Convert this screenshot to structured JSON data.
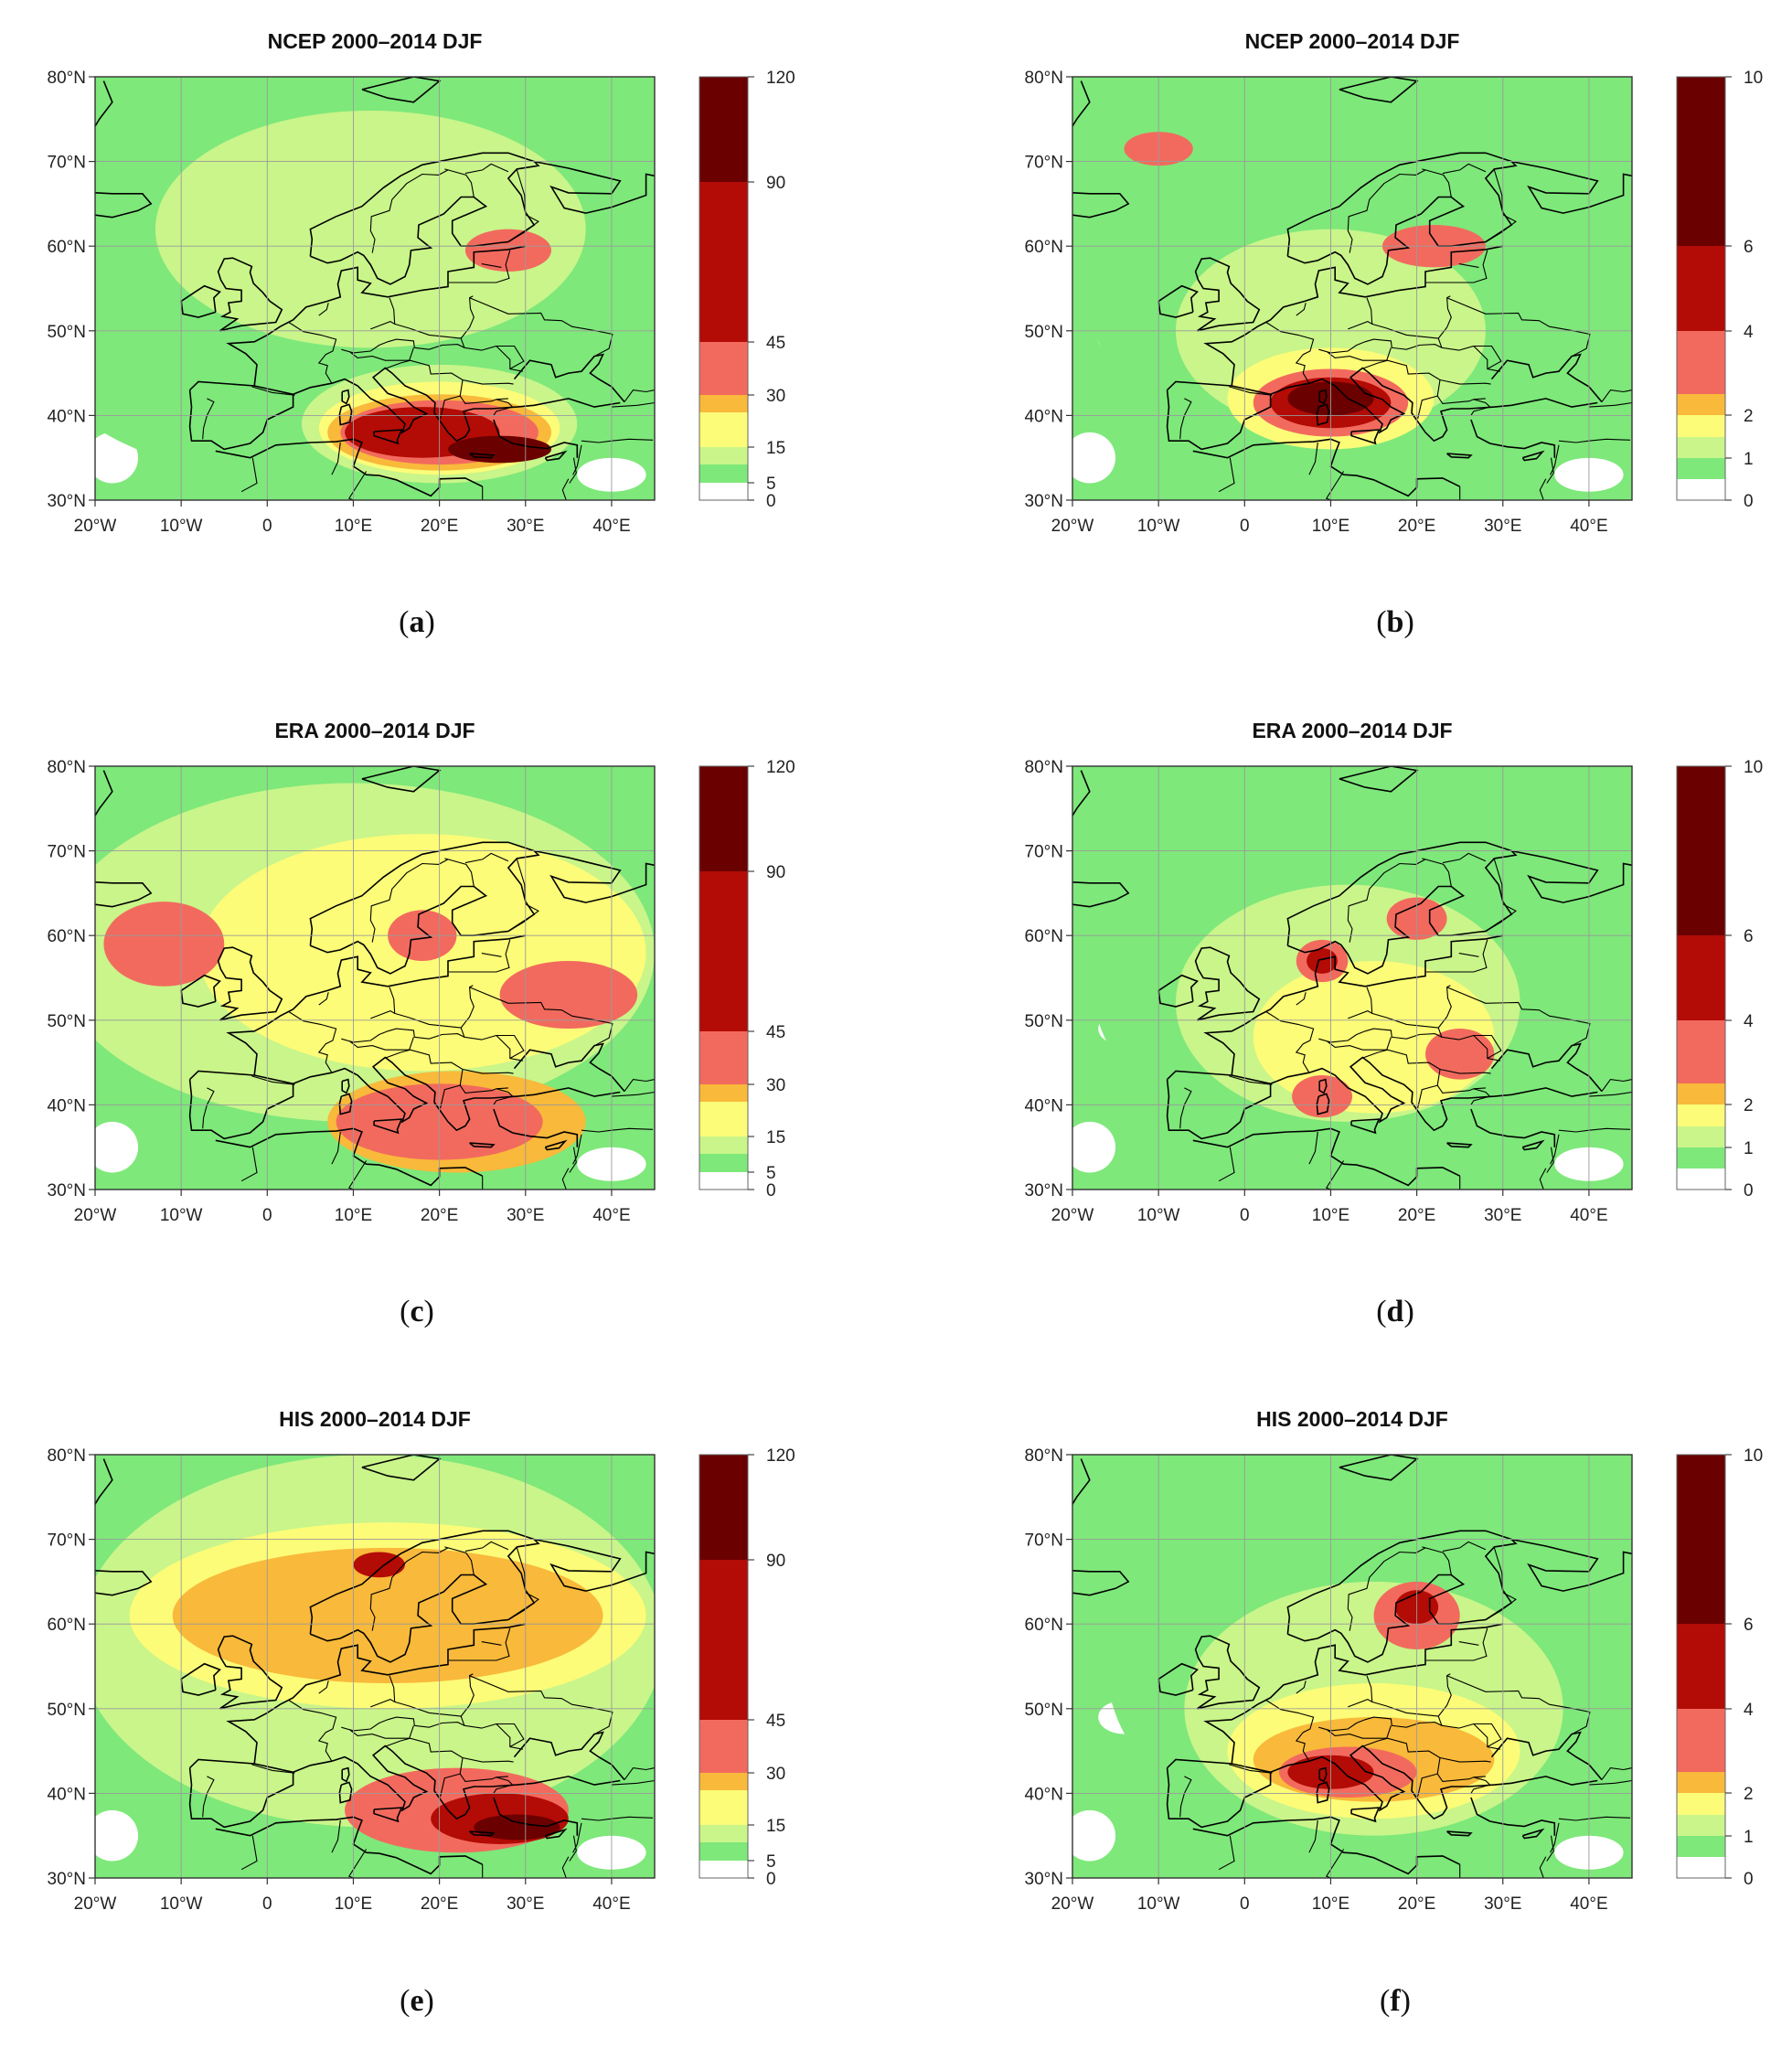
{
  "colors": {
    "white": "#ffffff",
    "green_mid": "#7ee87a",
    "green_light": "#c9f58a",
    "yellow": "#fcfc78",
    "orange": "#f9b93a",
    "red_light": "#f26a5e",
    "red": "#b30b05",
    "dark_red": "#6b0000"
  },
  "axes": {
    "x_ticks": [
      "20°W",
      "10°W",
      "0",
      "10°E",
      "20°E",
      "30°E",
      "40°E"
    ],
    "y_ticks": [
      "80°N",
      "70°N",
      "60°N",
      "50°N",
      "40°N",
      "30°N"
    ],
    "lon_range": [
      -20,
      45
    ],
    "lat_range": [
      30,
      80
    ],
    "grid": true
  },
  "colorbars": {
    "left": [
      "120",
      "90",
      "45",
      "30",
      "15",
      "5",
      "0"
    ],
    "right": [
      "10",
      "6",
      "4",
      "2",
      "1",
      "0"
    ]
  },
  "panels": [
    {
      "id": "a",
      "title": "NCEP 2000–2014 DJF",
      "caption": "a",
      "scale": "left",
      "blobs": [
        {
          "level": 1,
          "lon": 0,
          "lat": 55,
          "rx": 30,
          "ry": 22
        },
        {
          "level": 2,
          "lon": 12,
          "lat": 62,
          "rx": 25,
          "ry": 14
        },
        {
          "level": 2,
          "lon": 20,
          "lat": 39,
          "rx": 16,
          "ry": 7
        },
        {
          "level": 3,
          "lon": 20,
          "lat": 38.5,
          "rx": 14,
          "ry": 5.5
        },
        {
          "level": 4,
          "lon": 20,
          "lat": 38,
          "rx": 13,
          "ry": 4.5
        },
        {
          "level": 5,
          "lon": 20,
          "lat": 38,
          "rx": 11.5,
          "ry": 3.8
        },
        {
          "level": 6,
          "lon": 18,
          "lat": 38,
          "rx": 9,
          "ry": 3
        },
        {
          "level": 7,
          "lon": 27,
          "lat": 36,
          "rx": 6,
          "ry": 1.6
        },
        {
          "level": 5,
          "lon": 28,
          "lat": 59.5,
          "rx": 5,
          "ry": 2.5
        }
      ]
    },
    {
      "id": "b",
      "title": "NCEP 2000–2014 DJF",
      "caption": "b",
      "scale": "right",
      "blobs": [
        {
          "level": 1,
          "lon": 12,
          "lat": 55,
          "rx": 30,
          "ry": 24
        },
        {
          "level": 2,
          "lon": 10,
          "lat": 50,
          "rx": 18,
          "ry": 12
        },
        {
          "level": 3,
          "lon": 10,
          "lat": 42,
          "rx": 12,
          "ry": 6
        },
        {
          "level": 5,
          "lon": 10,
          "lat": 41.5,
          "rx": 9,
          "ry": 4
        },
        {
          "level": 6,
          "lon": 10,
          "lat": 41.5,
          "rx": 7,
          "ry": 3
        },
        {
          "level": 7,
          "lon": 10,
          "lat": 42,
          "rx": 5,
          "ry": 2
        },
        {
          "level": 5,
          "lon": 22,
          "lat": 60,
          "rx": 6,
          "ry": 2.5
        },
        {
          "level": 5,
          "lon": -10,
          "lat": 71.5,
          "rx": 4,
          "ry": 2
        }
      ]
    },
    {
      "id": "c",
      "title": "ERA 2000–2014 DJF",
      "caption": "c",
      "scale": "left",
      "blobs": [
        {
          "level": 2,
          "lon": 10,
          "lat": 58,
          "rx": 35,
          "ry": 20
        },
        {
          "level": 3,
          "lon": 18,
          "lat": 58,
          "rx": 26,
          "ry": 14
        },
        {
          "level": 4,
          "lon": 22,
          "lat": 38,
          "rx": 15,
          "ry": 6
        },
        {
          "level": 5,
          "lon": 20,
          "lat": 38,
          "rx": 12,
          "ry": 4.5
        },
        {
          "level": 5,
          "lon": -12,
          "lat": 59,
          "rx": 7,
          "ry": 5
        },
        {
          "level": 5,
          "lon": 18,
          "lat": 60,
          "rx": 4,
          "ry": 3
        },
        {
          "level": 5,
          "lon": 35,
          "lat": 53,
          "rx": 8,
          "ry": 4
        }
      ]
    },
    {
      "id": "d",
      "title": "ERA 2000–2014 DJF",
      "caption": "d",
      "scale": "right",
      "blobs": [
        {
          "level": 1,
          "lon": 12,
          "lat": 56,
          "rx": 30,
          "ry": 24
        },
        {
          "level": 2,
          "lon": 12,
          "lat": 52,
          "rx": 20,
          "ry": 14
        },
        {
          "level": 3,
          "lon": 15,
          "lat": 48,
          "rx": 14,
          "ry": 9
        },
        {
          "level": 5,
          "lon": 9,
          "lat": 57,
          "rx": 3,
          "ry": 2.5
        },
        {
          "level": 6,
          "lon": 9,
          "lat": 57,
          "rx": 1.8,
          "ry": 1.5
        },
        {
          "level": 5,
          "lon": 20,
          "lat": 62,
          "rx": 3.5,
          "ry": 2.5
        },
        {
          "level": 5,
          "lon": 9,
          "lat": 41,
          "rx": 3.5,
          "ry": 2.5
        },
        {
          "level": 5,
          "lon": 25,
          "lat": 46,
          "rx": 4,
          "ry": 3
        }
      ]
    },
    {
      "id": "e",
      "title": "HIS 2000–2014 DJF",
      "caption": "e",
      "scale": "left",
      "blobs": [
        {
          "level": 2,
          "lon": 12,
          "lat": 58,
          "rx": 34,
          "ry": 22
        },
        {
          "level": 3,
          "lon": 14,
          "lat": 61,
          "rx": 30,
          "ry": 11
        },
        {
          "level": 4,
          "lon": 14,
          "lat": 61,
          "rx": 25,
          "ry": 8
        },
        {
          "level": 5,
          "lon": 22,
          "lat": 38,
          "rx": 13,
          "ry": 5
        },
        {
          "level": 6,
          "lon": 27,
          "lat": 37,
          "rx": 8,
          "ry": 3
        },
        {
          "level": 7,
          "lon": 29,
          "lat": 36,
          "rx": 5,
          "ry": 1.5
        },
        {
          "level": 6,
          "lon": 13,
          "lat": 67,
          "rx": 3,
          "ry": 1.5
        }
      ]
    },
    {
      "id": "f",
      "title": "HIS 2000–2014 DJF",
      "caption": "f",
      "scale": "right",
      "blobs": [
        {
          "level": 1,
          "lon": 14,
          "lat": 55,
          "rx": 30,
          "ry": 22
        },
        {
          "level": 2,
          "lon": 15,
          "lat": 50,
          "rx": 22,
          "ry": 15
        },
        {
          "level": 3,
          "lon": 15,
          "lat": 45,
          "rx": 17,
          "ry": 8
        },
        {
          "level": 4,
          "lon": 15,
          "lat": 44,
          "rx": 14,
          "ry": 5
        },
        {
          "level": 5,
          "lon": 12,
          "lat": 42.5,
          "rx": 8,
          "ry": 3
        },
        {
          "level": 6,
          "lon": 10,
          "lat": 42.5,
          "rx": 5,
          "ry": 2
        },
        {
          "level": 5,
          "lon": 20,
          "lat": 61,
          "rx": 5,
          "ry": 4
        },
        {
          "level": 6,
          "lon": 20,
          "lat": 62,
          "rx": 2.5,
          "ry": 2
        }
      ]
    }
  ]
}
